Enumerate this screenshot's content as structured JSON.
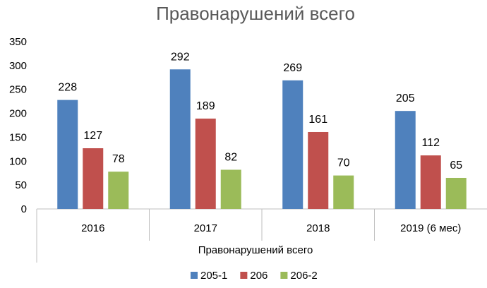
{
  "chart_data": {
    "type": "bar",
    "title": "Правонарушений всего",
    "xlabel": "Правонарушений всего",
    "ylabel": "",
    "categories": [
      "2016",
      "2017",
      "2018",
      "2019 (6 мес)"
    ],
    "series": [
      {
        "name": "205-1",
        "color": "#4f81bd",
        "values": [
          228,
          292,
          269,
          205
        ]
      },
      {
        "name": "206",
        "color": "#c0504d",
        "values": [
          127,
          189,
          161,
          112
        ]
      },
      {
        "name": "206-2",
        "color": "#9bbb59",
        "values": [
          78,
          82,
          70,
          65
        ]
      }
    ],
    "ylim": [
      0,
      350
    ],
    "yticks": [
      0,
      50,
      100,
      150,
      200,
      250,
      300,
      350
    ],
    "grid": false,
    "data_labels": true,
    "legend_position": "bottom"
  }
}
